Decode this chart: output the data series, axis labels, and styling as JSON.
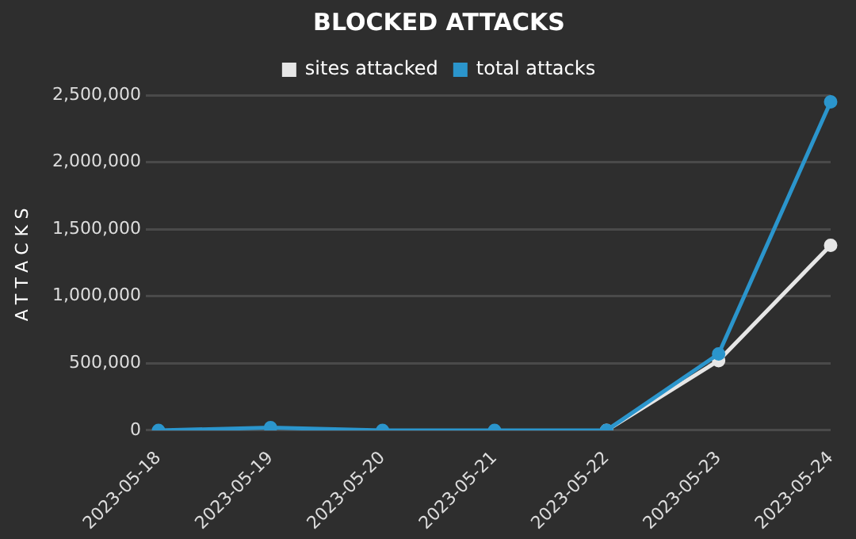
{
  "chart_data": {
    "type": "line",
    "title": "BLOCKED ATTACKS",
    "ylabel": "ATTACKS",
    "categories": [
      "2023-05-18",
      "2023-05-19",
      "2023-05-20",
      "2023-05-21",
      "2023-05-22",
      "2023-05-23",
      "2023-05-24"
    ],
    "series": [
      {
        "name": "sites attacked",
        "color": "#e6e6e6",
        "values": [
          null,
          null,
          null,
          null,
          0,
          520000,
          1380000
        ]
      },
      {
        "name": "total attacks",
        "color": "#2b95cc",
        "values": [
          0,
          20000,
          0,
          0,
          0,
          570000,
          2450000
        ]
      }
    ],
    "ylim": [
      0,
      2500000
    ],
    "yticks": [
      {
        "value": 0,
        "label": "0"
      },
      {
        "value": 500000,
        "label": "500,000"
      },
      {
        "value": 1000000,
        "label": "1,000,000"
      },
      {
        "value": 1500000,
        "label": "1,500,000"
      },
      {
        "value": 2000000,
        "label": "2,000,000"
      },
      {
        "value": 2500000,
        "label": "2,500,000"
      }
    ],
    "grid": "y",
    "legend": "top",
    "marker": "circle",
    "line_style": "solid"
  }
}
